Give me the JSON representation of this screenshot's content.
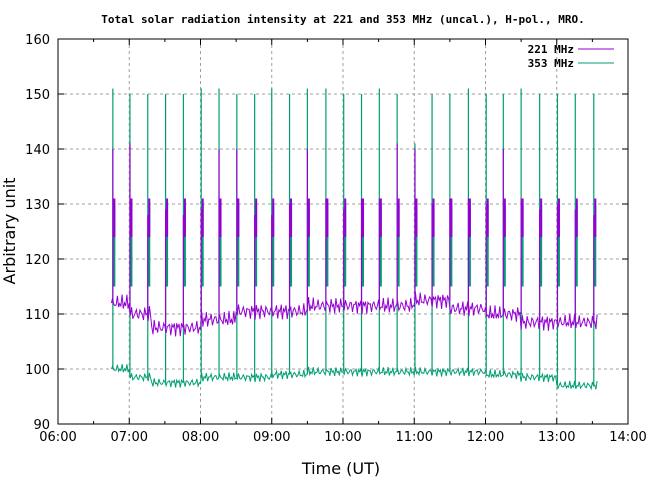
{
  "chart_data": {
    "type": "line",
    "title": "Total solar radiation intensity at 221 and 353 MHz (uncal.), H-pol., MRO.",
    "xlabel": "Time (UT)",
    "ylabel": "Arbitrary unit",
    "xlim": [
      6,
      14
    ],
    "ylim": [
      90,
      160
    ],
    "x_ticks": [
      "06:00",
      "07:00",
      "08:00",
      "09:00",
      "10:00",
      "11:00",
      "12:00",
      "13:00",
      "14:00"
    ],
    "y_ticks": [
      90,
      100,
      110,
      120,
      130,
      140,
      150,
      160
    ],
    "grid": true,
    "legend_position": "top-right",
    "spike_times_h": [
      6.77,
      7.01,
      7.26,
      7.51,
      7.76,
      8.01,
      8.26,
      8.51,
      8.76,
      9.0,
      9.25,
      9.5,
      9.76,
      10.01,
      10.26,
      10.51,
      10.76,
      11.01,
      11.25,
      11.5,
      11.76,
      12.01,
      12.25,
      12.5,
      12.76,
      13.01,
      13.26,
      13.52
    ],
    "series": [
      {
        "name": "221 MHz",
        "color": "#9400d3",
        "baseline": [
          {
            "from": 6.75,
            "to": 7.0,
            "value": 112
          },
          {
            "from": 7.0,
            "to": 7.3,
            "value": 110
          },
          {
            "from": 7.3,
            "to": 8.0,
            "value": 107.5
          },
          {
            "from": 8.0,
            "to": 8.5,
            "value": 109
          },
          {
            "from": 8.5,
            "to": 9.5,
            "value": 110.5
          },
          {
            "from": 9.5,
            "to": 10.5,
            "value": 111.5
          },
          {
            "from": 10.5,
            "to": 11.0,
            "value": 111.5
          },
          {
            "from": 11.0,
            "to": 11.5,
            "value": 112.5
          },
          {
            "from": 11.5,
            "to": 12.0,
            "value": 111
          },
          {
            "from": 12.0,
            "to": 12.5,
            "value": 110
          },
          {
            "from": 12.5,
            "to": 13.58,
            "value": 108.5
          }
        ],
        "spike_peaks": [
          140,
          141,
          128,
          129,
          128,
          129,
          140,
          140,
          128,
          128,
          130,
          140,
          131,
          129,
          131,
          131,
          141,
          140,
          130,
          131,
          131,
          130,
          140,
          131,
          129,
          130,
          129,
          128
        ]
      },
      {
        "name": "353 MHz",
        "color": "#009e73",
        "baseline": [
          {
            "from": 6.75,
            "to": 7.0,
            "value": 100
          },
          {
            "from": 7.0,
            "to": 7.3,
            "value": 98.5
          },
          {
            "from": 7.3,
            "to": 8.0,
            "value": 97.5
          },
          {
            "from": 8.0,
            "to": 9.0,
            "value": 98.5
          },
          {
            "from": 9.0,
            "to": 9.5,
            "value": 99
          },
          {
            "from": 9.5,
            "to": 12.0,
            "value": 99.5
          },
          {
            "from": 12.0,
            "to": 12.5,
            "value": 99
          },
          {
            "from": 12.5,
            "to": 13.0,
            "value": 98.5
          },
          {
            "from": 13.0,
            "to": 13.58,
            "value": 97
          }
        ],
        "spike_peaks": [
          151,
          150,
          150,
          150,
          150,
          151,
          151,
          150,
          150,
          151,
          150,
          151,
          151,
          150,
          150,
          151,
          150,
          141,
          150,
          150,
          151,
          150,
          150,
          151,
          150,
          150,
          150,
          150
        ]
      }
    ]
  }
}
